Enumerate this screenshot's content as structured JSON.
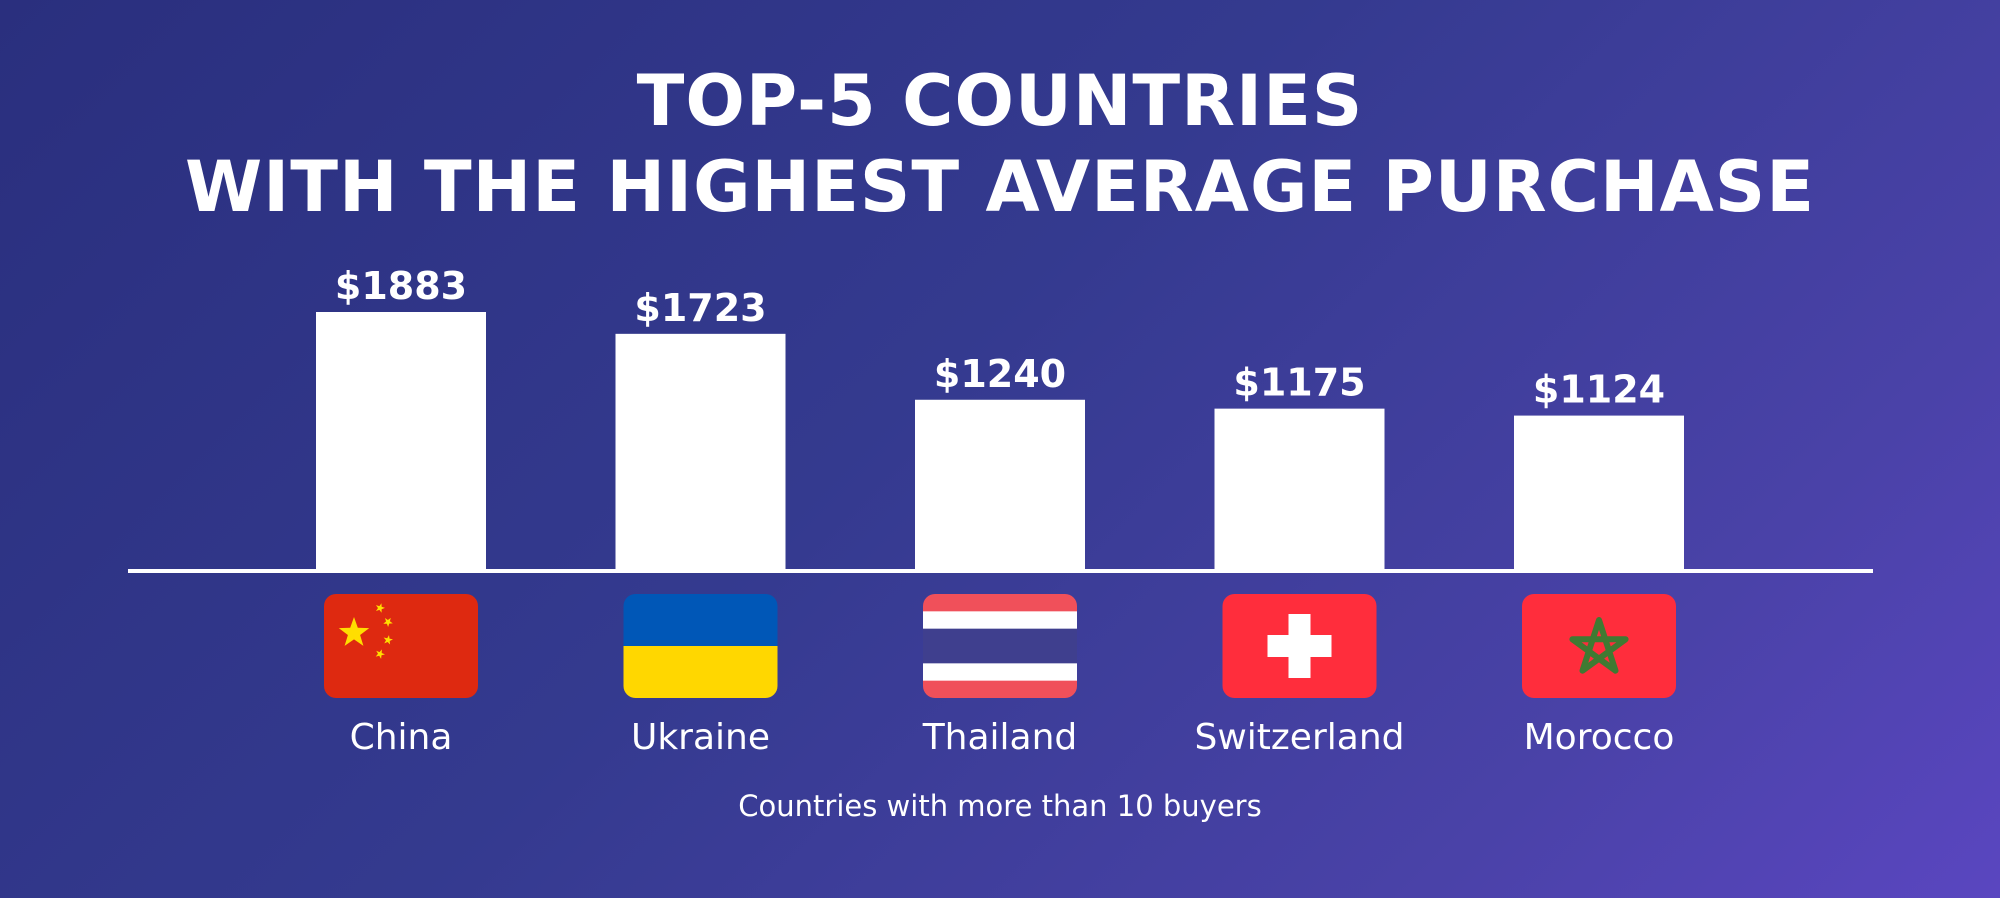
{
  "chart_data": {
    "type": "bar",
    "title": "TOP-5 COUNTRIES",
    "subtitle": "WITH THE HIGHEST AVERAGE PURCHASE",
    "categories": [
      "China",
      "Ukraine",
      "Thailand",
      "Switzerland",
      "Morocco"
    ],
    "values": [
      1883,
      1723,
      1240,
      1175,
      1124
    ],
    "value_labels": [
      "$1883",
      "$1723",
      "$1240",
      "$1175",
      "$1124"
    ],
    "ylim": [
      0,
      1883
    ],
    "grid": false,
    "note": "Countries with more than 10 buyers"
  },
  "flags": [
    {
      "country": "China",
      "icon": "china-flag-icon",
      "colors": {
        "field": "#de2910",
        "star": "#ffde00"
      }
    },
    {
      "country": "Ukraine",
      "icon": "ukraine-flag-icon",
      "colors": {
        "top": "#0057b7",
        "bottom": "#ffd700"
      }
    },
    {
      "country": "Thailand",
      "icon": "thailand-flag-icon",
      "colors": {
        "red": "#f0505a",
        "white": "#ffffff",
        "blue": "#3f3f8e"
      }
    },
    {
      "country": "Switzerland",
      "icon": "switzerland-flag-icon",
      "colors": {
        "field": "#ff2d3c",
        "cross": "#ffffff"
      }
    },
    {
      "country": "Morocco",
      "icon": "morocco-flag-icon",
      "colors": {
        "field": "#ff2d3c",
        "star": "#3f7a32"
      }
    }
  ],
  "colors": {
    "bar": "#ffffff",
    "baseline": "#ffffff",
    "text": "#ffffff"
  }
}
